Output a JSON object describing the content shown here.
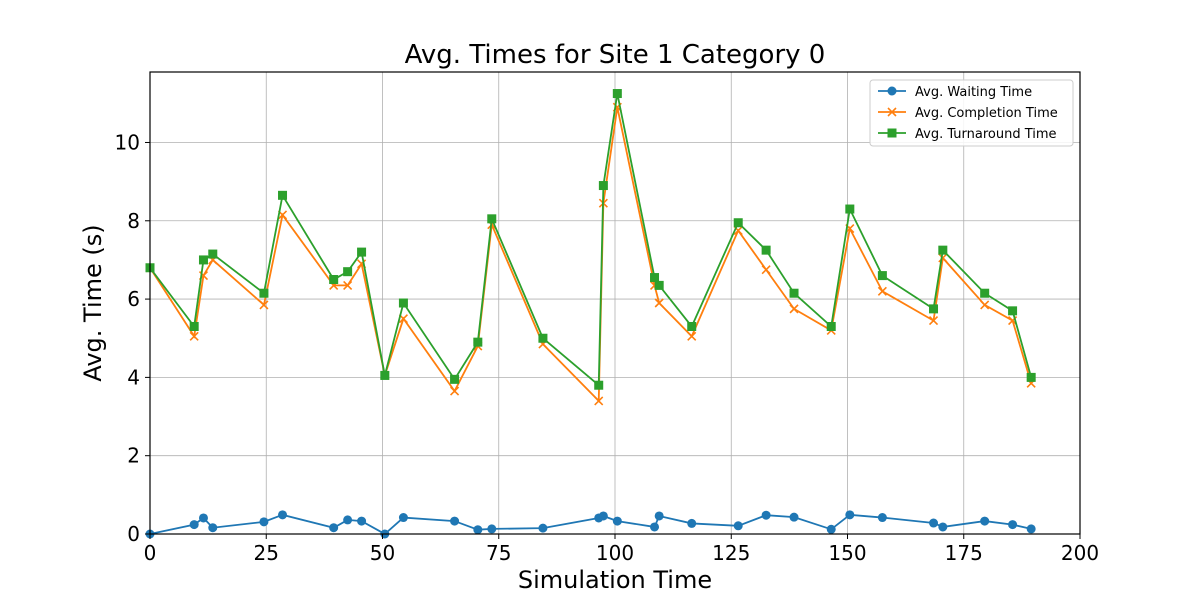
{
  "chart_data": {
    "type": "line",
    "title": "Avg. Times for Site 1 Category 0",
    "xlabel": "Simulation Time",
    "ylabel": "Avg. Time (s)",
    "xlim": [
      0,
      200
    ],
    "ylim": [
      0,
      11.8
    ],
    "xticks": [
      0,
      25,
      50,
      75,
      100,
      125,
      150,
      175,
      200
    ],
    "yticks": [
      0,
      2,
      4,
      6,
      8,
      10
    ],
    "grid": true,
    "legend_position": "top-right",
    "series": [
      {
        "name": "Avg. Waiting Time",
        "color": "#1f77b4",
        "marker": "circle",
        "x": [
          0,
          9.5,
          11.5,
          13.5,
          24.5,
          28.5,
          39.5,
          42.5,
          45.5,
          50.5,
          54.5,
          65.5,
          70.5,
          73.5,
          84.5,
          96.5,
          97.5,
          100.5,
          108.5,
          109.5,
          116.5,
          126.5,
          132.5,
          138.5,
          146.5,
          150.5,
          157.5,
          168.5,
          170.5,
          179.5,
          185.5,
          189.5
        ],
        "y": [
          0.0,
          0.24,
          0.41,
          0.16,
          0.31,
          0.49,
          0.16,
          0.36,
          0.33,
          0.0,
          0.42,
          0.33,
          0.11,
          0.13,
          0.15,
          0.41,
          0.46,
          0.33,
          0.18,
          0.46,
          0.27,
          0.21,
          0.48,
          0.43,
          0.12,
          0.49,
          0.42,
          0.28,
          0.18,
          0.33,
          0.24,
          0.13
        ]
      },
      {
        "name": "Avg. Completion Time",
        "color": "#ff7f0e",
        "marker": "x",
        "x": [
          0,
          9.5,
          11.5,
          13.5,
          24.5,
          28.5,
          39.5,
          42.5,
          45.5,
          50.5,
          54.5,
          65.5,
          70.5,
          73.5,
          84.5,
          96.5,
          97.5,
          100.5,
          108.5,
          109.5,
          116.5,
          126.5,
          132.5,
          138.5,
          146.5,
          150.5,
          157.5,
          168.5,
          170.5,
          179.5,
          185.5,
          189.5
        ],
        "y": [
          6.8,
          5.05,
          6.6,
          7.0,
          5.85,
          8.15,
          6.35,
          6.35,
          6.9,
          4.05,
          5.5,
          3.65,
          4.8,
          7.9,
          4.85,
          3.4,
          8.45,
          10.9,
          6.35,
          5.9,
          5.05,
          7.75,
          6.75,
          5.75,
          5.2,
          7.8,
          6.2,
          5.45,
          7.05,
          5.85,
          5.45,
          3.85
        ]
      },
      {
        "name": "Avg. Turnaround Time",
        "color": "#2ca02c",
        "marker": "square",
        "x": [
          0,
          9.5,
          11.5,
          13.5,
          24.5,
          28.5,
          39.5,
          42.5,
          45.5,
          50.5,
          54.5,
          65.5,
          70.5,
          73.5,
          84.5,
          96.5,
          97.5,
          100.5,
          108.5,
          109.5,
          116.5,
          126.5,
          132.5,
          138.5,
          146.5,
          150.5,
          157.5,
          168.5,
          170.5,
          179.5,
          185.5,
          189.5
        ],
        "y": [
          6.8,
          5.3,
          7.0,
          7.15,
          6.15,
          8.65,
          6.5,
          6.7,
          7.2,
          4.05,
          5.9,
          3.95,
          4.9,
          8.05,
          5.0,
          3.8,
          8.9,
          11.25,
          6.55,
          6.35,
          5.3,
          7.95,
          7.25,
          6.15,
          5.3,
          8.3,
          6.6,
          5.75,
          7.25,
          6.15,
          5.7,
          4.0
        ]
      }
    ]
  }
}
